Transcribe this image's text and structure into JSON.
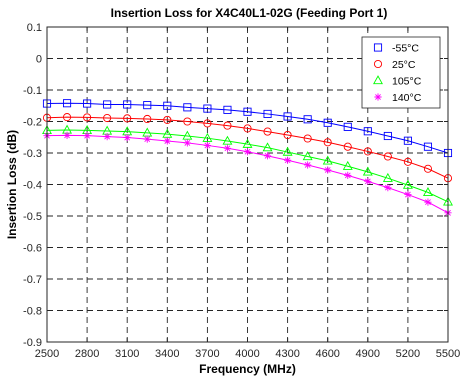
{
  "chart_data": {
    "type": "line",
    "title": "Insertion Loss for X4C40L1-02G (Feeding Port 1)",
    "xlabel": "Frequency (MHz)",
    "ylabel": "Insertion Loss (dB)",
    "xlim": [
      2500,
      5500
    ],
    "ylim": [
      -0.9,
      0.1
    ],
    "xticks": [
      2500,
      2800,
      3100,
      3400,
      3700,
      4000,
      4300,
      4600,
      4900,
      5200,
      5500
    ],
    "yticks": [
      -0.9,
      -0.8,
      -0.7,
      -0.6,
      -0.5,
      -0.4,
      -0.3,
      -0.2,
      -0.1,
      0,
      0.1
    ],
    "xtick_labels": [
      "2500",
      "2800",
      "3100",
      "3400",
      "3700",
      "4000",
      "4300",
      "4600",
      "4900",
      "5200",
      "5500"
    ],
    "ytick_labels": [
      "-0.9",
      "-0.8",
      "-0.7",
      "-0.6",
      "-0.5",
      "-0.4",
      "-0.3",
      "-0.2",
      "-0.1",
      "0",
      "0.1"
    ],
    "grid": true,
    "grid_style": "dashed",
    "legend_position": "top-right",
    "x": [
      2500,
      2650,
      2800,
      2950,
      3100,
      3250,
      3400,
      3550,
      3700,
      3850,
      4000,
      4150,
      4300,
      4450,
      4600,
      4750,
      4900,
      5050,
      5200,
      5350,
      5500
    ],
    "series": [
      {
        "name": "-55°C",
        "color": "#0000ff",
        "marker": "square",
        "values": [
          -0.143,
          -0.142,
          -0.143,
          -0.146,
          -0.146,
          -0.148,
          -0.15,
          -0.155,
          -0.159,
          -0.163,
          -0.169,
          -0.176,
          -0.184,
          -0.193,
          -0.204,
          -0.217,
          -0.231,
          -0.246,
          -0.261,
          -0.28,
          -0.3
        ]
      },
      {
        "name": "25°C",
        "color": "#ff0000",
        "marker": "circle",
        "values": [
          -0.188,
          -0.186,
          -0.187,
          -0.189,
          -0.19,
          -0.192,
          -0.195,
          -0.2,
          -0.206,
          -0.213,
          -0.222,
          -0.232,
          -0.243,
          -0.254,
          -0.266,
          -0.28,
          -0.295,
          -0.311,
          -0.328,
          -0.35,
          -0.38
        ]
      },
      {
        "name": "105°C",
        "color": "#00ff00",
        "marker": "triangle",
        "values": [
          -0.228,
          -0.227,
          -0.228,
          -0.23,
          -0.232,
          -0.236,
          -0.24,
          -0.246,
          -0.253,
          -0.262,
          -0.272,
          -0.283,
          -0.297,
          -0.311,
          -0.325,
          -0.342,
          -0.36,
          -0.38,
          -0.402,
          -0.425,
          -0.455
        ]
      },
      {
        "name": "140°C",
        "color": "#ff00ff",
        "marker": "asterisk",
        "values": [
          -0.245,
          -0.244,
          -0.245,
          -0.248,
          -0.251,
          -0.256,
          -0.262,
          -0.268,
          -0.276,
          -0.285,
          -0.296,
          -0.309,
          -0.323,
          -0.338,
          -0.354,
          -0.371,
          -0.39,
          -0.41,
          -0.432,
          -0.456,
          -0.49
        ]
      }
    ]
  }
}
